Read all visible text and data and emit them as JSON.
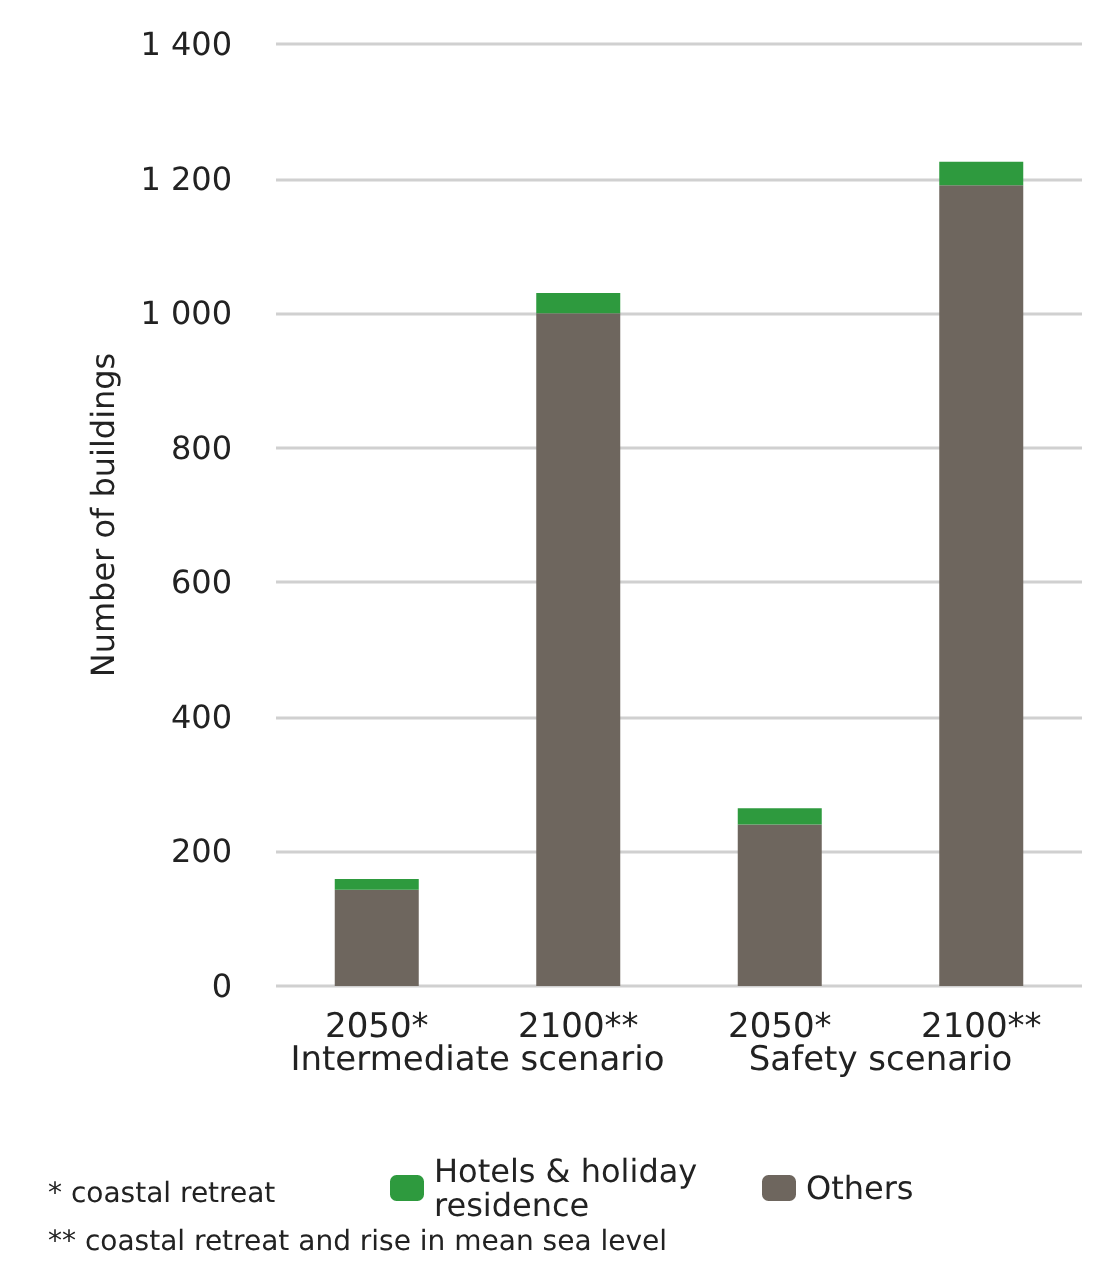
{
  "chart_data": {
    "type": "bar",
    "stacked": true,
    "ylabel": "Number of buildings",
    "categories": [
      "2050*",
      "2100**",
      "2050*",
      "2100**"
    ],
    "series": [
      {
        "name": "Others",
        "color": "#6e665e",
        "values": [
          143,
          1000,
          240,
          1190
        ]
      },
      {
        "name": "Hotels & holiday residence",
        "color": "#2e9a3e",
        "values": [
          16,
          30,
          24,
          35
        ]
      }
    ],
    "ylim": [
      0,
      1400
    ],
    "yticks": [
      0,
      200,
      400,
      600,
      800,
      {
        "value": 1000,
        "label": "1 000"
      },
      {
        "value": 1200,
        "label": "1 200"
      },
      {
        "value": 1400,
        "label": "1 400"
      }
    ],
    "grid": "y",
    "legend": "bottom",
    "annotations": [
      "Intermediate scenario",
      "Safety scenario",
      "* coastal retreat",
      "** coastal retreat and rise in mean sea level"
    ]
  }
}
